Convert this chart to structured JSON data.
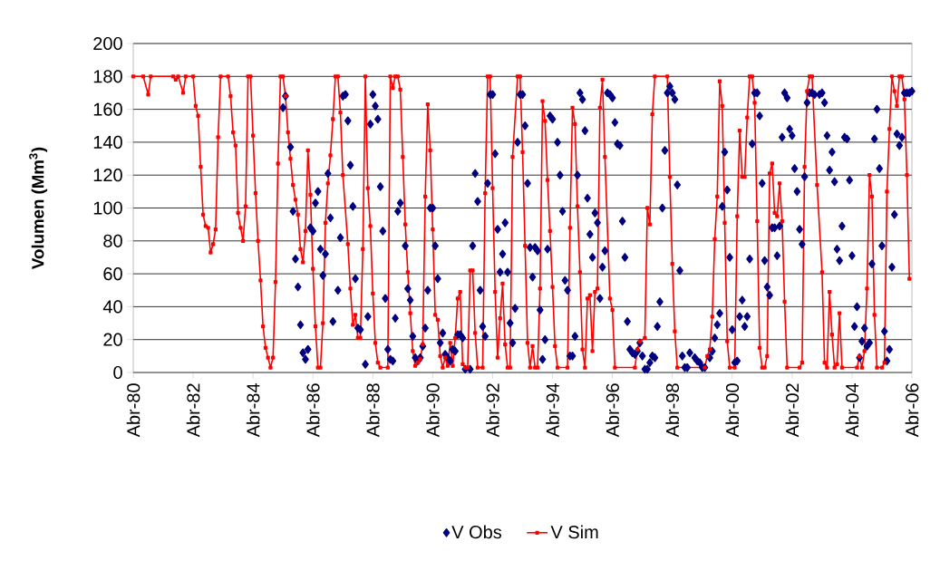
{
  "chart_data": {
    "type": "line",
    "ylabel": "Volumen (Mm$^{3}$)",
    "xlim": [
      "1980-04",
      "2006-04"
    ],
    "xticks": [
      {
        "value": "1980-04",
        "label": "Abr-80"
      },
      {
        "value": "1982-04",
        "label": "Abr-82"
      },
      {
        "value": "1984-04",
        "label": "Abr-84"
      },
      {
        "value": "1986-04",
        "label": "Abr-86"
      },
      {
        "value": "1988-04",
        "label": "Abr-88"
      },
      {
        "value": "1990-04",
        "label": "Abr-90"
      },
      {
        "value": "1992-04",
        "label": "Abr-92"
      },
      {
        "value": "1994-04",
        "label": "Abr-94"
      },
      {
        "value": "1996-04",
        "label": "Abr-96"
      },
      {
        "value": "1998-04",
        "label": "Abr-98"
      },
      {
        "value": "2000-04",
        "label": "Abr-00"
      },
      {
        "value": "2002-04",
        "label": "Abr-02"
      },
      {
        "value": "2004-04",
        "label": "Abr-04"
      },
      {
        "value": "2006-04",
        "label": "Abr-06"
      }
    ],
    "ylim": [
      0,
      200
    ],
    "yticks": [
      0,
      20,
      40,
      60,
      80,
      100,
      120,
      140,
      160,
      180,
      200
    ],
    "grid": "y",
    "legend": "bottom",
    "series": [
      {
        "name": "V Obs",
        "type": "scatter",
        "marker": "diamond",
        "color": "#000080",
        "x": [
          "1985-04",
          "1985-05",
          "1985-07",
          "1985-08",
          "1985-09",
          "1985-10",
          "1985-11",
          "1985-12",
          "1986-01",
          "1986-02",
          "1986-03",
          "1986-04",
          "1986-05",
          "1986-06",
          "1986-07",
          "1986-08",
          "1986-09",
          "1986-10",
          "1986-11",
          "1986-12",
          "1987-02",
          "1987-03",
          "1987-04",
          "1987-05",
          "1987-06",
          "1987-07",
          "1987-08",
          "1987-09",
          "1987-10",
          "1987-11",
          "1988-01",
          "1988-02",
          "1988-03",
          "1988-04",
          "1988-05",
          "1988-06",
          "1988-07",
          "1988-08",
          "1988-09",
          "1988-10",
          "1988-11",
          "1988-12",
          "1989-01",
          "1989-02",
          "1989-03",
          "1989-05",
          "1989-06",
          "1989-07",
          "1989-08",
          "1989-09",
          "1989-10",
          "1989-11",
          "1989-12",
          "1990-01",
          "1990-02",
          "1990-03",
          "1990-04",
          "1990-05",
          "1990-06",
          "1990-07",
          "1990-08",
          "1990-09",
          "1990-10",
          "1990-11",
          "1990-12",
          "1991-01",
          "1991-02",
          "1991-03",
          "1991-04",
          "1991-05",
          "1991-07",
          "1991-08",
          "1991-09",
          "1991-10",
          "1991-11",
          "1991-12",
          "1992-01",
          "1992-02",
          "1992-03",
          "1992-04",
          "1992-05",
          "1992-06",
          "1992-07",
          "1992-08",
          "1992-09",
          "1992-10",
          "1992-11",
          "1992-12",
          "1993-01",
          "1993-02",
          "1993-03",
          "1993-04",
          "1993-05",
          "1993-06",
          "1993-07",
          "1993-08",
          "1993-09",
          "1993-10",
          "1993-11",
          "1993-12",
          "1994-01",
          "1994-02",
          "1994-03",
          "1994-04",
          "1994-06",
          "1994-07",
          "1994-08",
          "1994-09",
          "1994-10",
          "1994-11",
          "1994-12",
          "1995-01",
          "1995-02",
          "1995-03",
          "1995-04",
          "1995-05",
          "1995-06",
          "1995-07",
          "1995-08",
          "1995-09",
          "1995-10",
          "1995-11",
          "1995-12",
          "1996-01",
          "1996-02",
          "1996-03",
          "1996-04",
          "1996-05",
          "1996-06",
          "1996-07",
          "1996-08",
          "1996-09",
          "1996-10",
          "1996-11",
          "1996-12",
          "1997-01",
          "1997-02",
          "1997-03",
          "1997-04",
          "1997-05",
          "1997-06",
          "1997-07",
          "1997-08",
          "1997-09",
          "1997-10",
          "1997-11",
          "1997-12",
          "1998-01",
          "1998-02",
          "1998-03",
          "1998-04",
          "1998-05",
          "1998-06",
          "1998-07",
          "1998-08",
          "1998-09",
          "1998-10",
          "1998-11",
          "1999-01",
          "1999-02",
          "1999-03",
          "1999-04",
          "1999-05",
          "1999-07",
          "1999-08",
          "1999-09",
          "1999-10",
          "1999-11",
          "1999-12",
          "2000-01",
          "2000-02",
          "2000-03",
          "2000-04",
          "2000-05",
          "2000-06",
          "2000-07",
          "2000-08",
          "2000-09",
          "2000-10",
          "2000-11",
          "2000-12",
          "2001-01",
          "2001-02",
          "2001-03",
          "2001-04",
          "2001-05",
          "2001-06",
          "2001-07",
          "2001-08",
          "2001-09",
          "2001-10",
          "2001-11",
          "2001-12",
          "2002-01",
          "2002-02",
          "2002-03",
          "2002-04",
          "2002-05",
          "2002-06",
          "2002-07",
          "2002-08",
          "2002-09",
          "2002-10",
          "2002-11",
          "2002-12",
          "2003-01",
          "2003-03",
          "2003-04",
          "2003-05",
          "2003-06",
          "2003-07",
          "2003-08",
          "2003-09",
          "2003-10",
          "2003-11",
          "2003-12",
          "2004-01",
          "2004-02",
          "2004-03",
          "2004-04",
          "2004-05",
          "2004-06",
          "2004-07",
          "2004-08",
          "2004-09",
          "2004-10",
          "2004-11",
          "2004-12",
          "2005-01",
          "2005-02",
          "2005-03",
          "2005-04",
          "2005-05",
          "2005-06",
          "2005-07",
          "2005-08",
          "2005-09",
          "2005-10",
          "2005-11",
          "2005-12",
          "2006-01",
          "2006-02",
          "2006-03",
          "2006-04"
        ],
        "values": [
          161,
          168,
          137,
          98,
          69,
          52,
          29,
          12,
          8,
          14,
          88,
          86,
          103,
          110,
          75,
          59,
          72,
          121,
          94,
          31,
          50,
          82,
          168,
          169,
          153,
          126,
          101,
          57,
          27,
          26,
          5,
          34,
          151,
          169,
          162,
          154,
          113,
          86,
          45,
          14,
          8,
          7,
          33,
          98,
          103,
          77,
          51,
          44,
          22,
          9,
          7,
          9,
          16,
          27,
          50,
          100,
          100,
          77,
          57,
          18,
          24,
          11,
          9,
          7,
          14,
          13,
          23,
          23,
          21,
          2,
          2,
          77,
          121,
          104,
          50,
          28,
          22,
          115,
          169,
          169,
          133,
          87,
          61,
          72,
          91,
          61,
          30,
          18,
          39,
          140,
          169,
          169,
          150,
          115,
          76,
          58,
          76,
          74,
          38,
          8,
          20,
          75,
          156,
          154,
          140,
          120,
          98,
          56,
          50,
          10,
          10,
          22,
          120,
          170,
          166,
          147,
          106,
          84,
          70,
          97,
          91,
          45,
          64,
          74,
          170,
          169,
          167,
          152,
          139,
          138,
          92,
          70,
          31,
          14,
          12,
          11,
          13,
          18,
          10,
          2,
          2,
          6,
          10,
          9,
          28,
          43,
          100,
          135,
          170,
          174,
          170,
          166,
          114,
          62,
          10,
          3,
          3,
          12,
          9,
          7,
          6,
          3,
          3,
          9,
          13,
          21,
          29,
          36,
          101,
          134,
          111,
          70,
          26,
          6,
          7,
          34,
          44,
          28,
          34,
          69,
          139,
          170,
          170,
          156,
          115,
          68,
          52,
          47,
          88,
          88,
          71,
          89,
          143,
          170,
          167,
          148,
          144,
          124,
          110,
          87,
          78,
          119,
          164,
          170,
          170,
          169,
          169,
          170,
          164,
          144,
          123,
          134,
          116,
          75,
          68,
          89,
          143,
          142,
          117,
          71,
          28,
          40,
          9,
          19,
          27,
          16,
          18,
          66,
          142,
          160,
          124,
          77,
          25,
          7,
          14,
          64,
          96,
          145,
          138,
          143,
          170,
          170,
          170,
          171
        ]
      },
      {
        "name": "V Sim",
        "marker": "square",
        "color": "#ff0000",
        "x": [
          "1980-04",
          "1980-08",
          "1980-10",
          "1980-11",
          "1981-08",
          "1981-09",
          "1981-10",
          "1981-12",
          "1982-01",
          "1982-04",
          "1982-05",
          "1982-06",
          "1982-07",
          "1982-08",
          "1982-09",
          "1982-10",
          "1982-11",
          "1982-12",
          "1983-01",
          "1983-02",
          "1983-03",
          "1983-06",
          "1983-07",
          "1983-08",
          "1983-09",
          "1983-10",
          "1983-11",
          "1983-12",
          "1984-01",
          "1984-02",
          "1984-03",
          "1984-04",
          "1984-05",
          "1984-06",
          "1984-07",
          "1984-08",
          "1984-09",
          "1984-10",
          "1984-11",
          "1984-12",
          "1985-01",
          "1985-02",
          "1985-03",
          "1985-04",
          "1985-05",
          "1985-06",
          "1985-07",
          "1985-08",
          "1985-09",
          "1985-10",
          "1985-11",
          "1985-12",
          "1986-01",
          "1986-02",
          "1986-03",
          "1986-04",
          "1986-05",
          "1986-06",
          "1986-07",
          "1986-08",
          "1986-09",
          "1986-10",
          "1986-11",
          "1986-12",
          "1987-01",
          "1987-02",
          "1987-03",
          "1987-04",
          "1987-06",
          "1987-07",
          "1987-08",
          "1987-09",
          "1987-10",
          "1987-11",
          "1987-12",
          "1988-01",
          "1988-02",
          "1988-03",
          "1988-04",
          "1988-05",
          "1988-06",
          "1988-07",
          "1988-10",
          "1988-11",
          "1988-12",
          "1989-01",
          "1989-02",
          "1989-03",
          "1989-04",
          "1989-05",
          "1989-06",
          "1989-07",
          "1989-08",
          "1989-09",
          "1989-10",
          "1989-11",
          "1989-12",
          "1990-01",
          "1990-02",
          "1990-03",
          "1990-04",
          "1990-05",
          "1990-06",
          "1990-07",
          "1990-08",
          "1990-09",
          "1990-10",
          "1990-11",
          "1990-12",
          "1991-01",
          "1991-02",
          "1991-03",
          "1991-04",
          "1991-05",
          "1991-06",
          "1991-07",
          "1991-08",
          "1991-09",
          "1991-10",
          "1991-12",
          "1992-01",
          "1992-02",
          "1992-03",
          "1992-04",
          "1992-05",
          "1992-06",
          "1992-07",
          "1992-08",
          "1992-09",
          "1992-10",
          "1992-11",
          "1992-12",
          "1993-02",
          "1993-03",
          "1993-04",
          "1993-05",
          "1993-06",
          "1993-07",
          "1993-08",
          "1993-09",
          "1993-10",
          "1993-11",
          "1993-12",
          "1994-01",
          "1994-02",
          "1994-03",
          "1994-04",
          "1994-05",
          "1994-06",
          "1994-10",
          "1994-11",
          "1994-12",
          "1995-01",
          "1995-02",
          "1995-03",
          "1995-04",
          "1995-05",
          "1995-06",
          "1995-07",
          "1995-08",
          "1995-09",
          "1995-10",
          "1995-11",
          "1995-12",
          "1996-01",
          "1996-03",
          "1996-04",
          "1996-05",
          "1997-01",
          "1997-02",
          "1997-03",
          "1997-05",
          "1997-06",
          "1997-07",
          "1997-08",
          "1997-09",
          "1998-02",
          "1998-03",
          "1998-04",
          "1998-05",
          "1998-06",
          "1999-05",
          "1999-06",
          "1999-07",
          "1999-08",
          "1999-09",
          "1999-10",
          "1999-11",
          "1999-12",
          "2000-01",
          "2000-02",
          "2000-03",
          "2000-05",
          "2000-06",
          "2000-07",
          "2000-08",
          "2000-09",
          "2000-10",
          "2000-11",
          "2000-12",
          "2001-01",
          "2001-02",
          "2001-03",
          "2001-04",
          "2001-05",
          "2001-06",
          "2001-07",
          "2001-08",
          "2001-09",
          "2001-10",
          "2001-11",
          "2001-12",
          "2002-01",
          "2002-02",
          "2002-07",
          "2002-08",
          "2002-09",
          "2002-10",
          "2002-11",
          "2002-12",
          "2003-02",
          "2003-04",
          "2003-05",
          "2003-06",
          "2003-07",
          "2003-08",
          "2003-09",
          "2003-10",
          "2003-11",
          "2003-12",
          "2004-06",
          "2004-07",
          "2004-08",
          "2004-09",
          "2004-10",
          "2004-11",
          "2004-12",
          "2005-01",
          "2005-02",
          "2005-04",
          "2005-05",
          "2005-06",
          "2005-07",
          "2005-08",
          "2005-09",
          "2005-10",
          "2005-11",
          "2005-12",
          "2006-01",
          "2006-02",
          "2006-03"
        ],
        "values": [
          180,
          180,
          169,
          180,
          180,
          178,
          180,
          170,
          180,
          180,
          162,
          156,
          125,
          96,
          89,
          88,
          73,
          78,
          87,
          143,
          180,
          180,
          168,
          146,
          138,
          97,
          88,
          80,
          101,
          180,
          180,
          144,
          109,
          80,
          56,
          28,
          15,
          9,
          3,
          9,
          55,
          127,
          180,
          180,
          168,
          146,
          130,
          114,
          105,
          96,
          75,
          67,
          86,
          135,
          108,
          63,
          28,
          3,
          3,
          30,
          91,
          115,
          132,
          154,
          180,
          180,
          158,
          120,
          78,
          51,
          29,
          35,
          21,
          21,
          75,
          180,
          112,
          89,
          48,
          18,
          6,
          3,
          3,
          180,
          173,
          180,
          180,
          172,
          131,
          90,
          61,
          36,
          13,
          4,
          6,
          8,
          17,
          107,
          163,
          135,
          87,
          35,
          32,
          10,
          3,
          9,
          4,
          18,
          4,
          21,
          45,
          49,
          5,
          3,
          3,
          62,
          62,
          24,
          3,
          3,
          109,
          180,
          180,
          112,
          49,
          9,
          33,
          54,
          17,
          3,
          3,
          131,
          180,
          180,
          134,
          77,
          18,
          3,
          16,
          3,
          3,
          51,
          165,
          153,
          117,
          86,
          52,
          16,
          3,
          3,
          88,
          161,
          151,
          101,
          61,
          14,
          3,
          45,
          47,
          13,
          49,
          51,
          161,
          178,
          131,
          45,
          38,
          3,
          3,
          14,
          19,
          21,
          100,
          90,
          157,
          180,
          180,
          119,
          66,
          25,
          3,
          3,
          10,
          14,
          34,
          81,
          107,
          177,
          162,
          91,
          19,
          3,
          3,
          95,
          147,
          119,
          119,
          155,
          180,
          180,
          164,
          92,
          15,
          3,
          3,
          10,
          121,
          127,
          97,
          95,
          115,
          92,
          43,
          3,
          3,
          6,
          125,
          171,
          180,
          180,
          114,
          61,
          6,
          3,
          49,
          23,
          3,
          5,
          36,
          3,
          3,
          10,
          3,
          13,
          51,
          120,
          107,
          35,
          3,
          3,
          6,
          110,
          148,
          180,
          171,
          162,
          180,
          180,
          166,
          120,
          57
        ]
      }
    ]
  }
}
